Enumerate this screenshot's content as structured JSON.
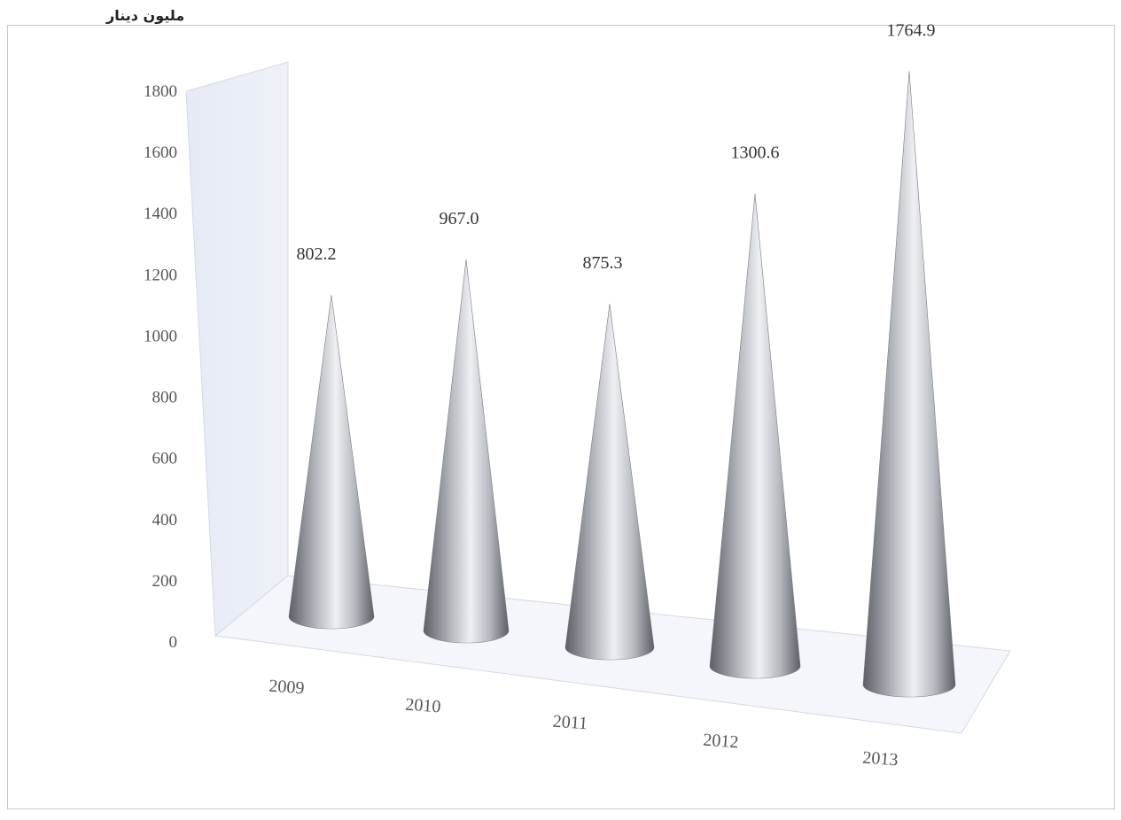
{
  "unit_label": "مليون دينار",
  "chart_data": {
    "type": "bar",
    "style": "3d-cone",
    "categories": [
      "2009",
      "2010",
      "2011",
      "2012",
      "2013"
    ],
    "values": [
      802.2,
      967.0,
      875.3,
      1300.6,
      1764.9
    ],
    "value_labels": [
      "802.2",
      "967.0",
      "875.3",
      "1300.6",
      "1764.9"
    ],
    "ylim": [
      0,
      1800
    ],
    "yticks": [
      0,
      200,
      400,
      600,
      800,
      1000,
      1200,
      1400,
      1600,
      1800
    ],
    "grid": false,
    "legend": "none",
    "colors": {
      "cone_dark": "#5c5f66",
      "cone_mid": "#b4b7bd",
      "cone_light": "#eef0f3",
      "wall": "#eef1f8",
      "floor": "#f4f6fb",
      "frame": "#c8c8c8"
    }
  }
}
